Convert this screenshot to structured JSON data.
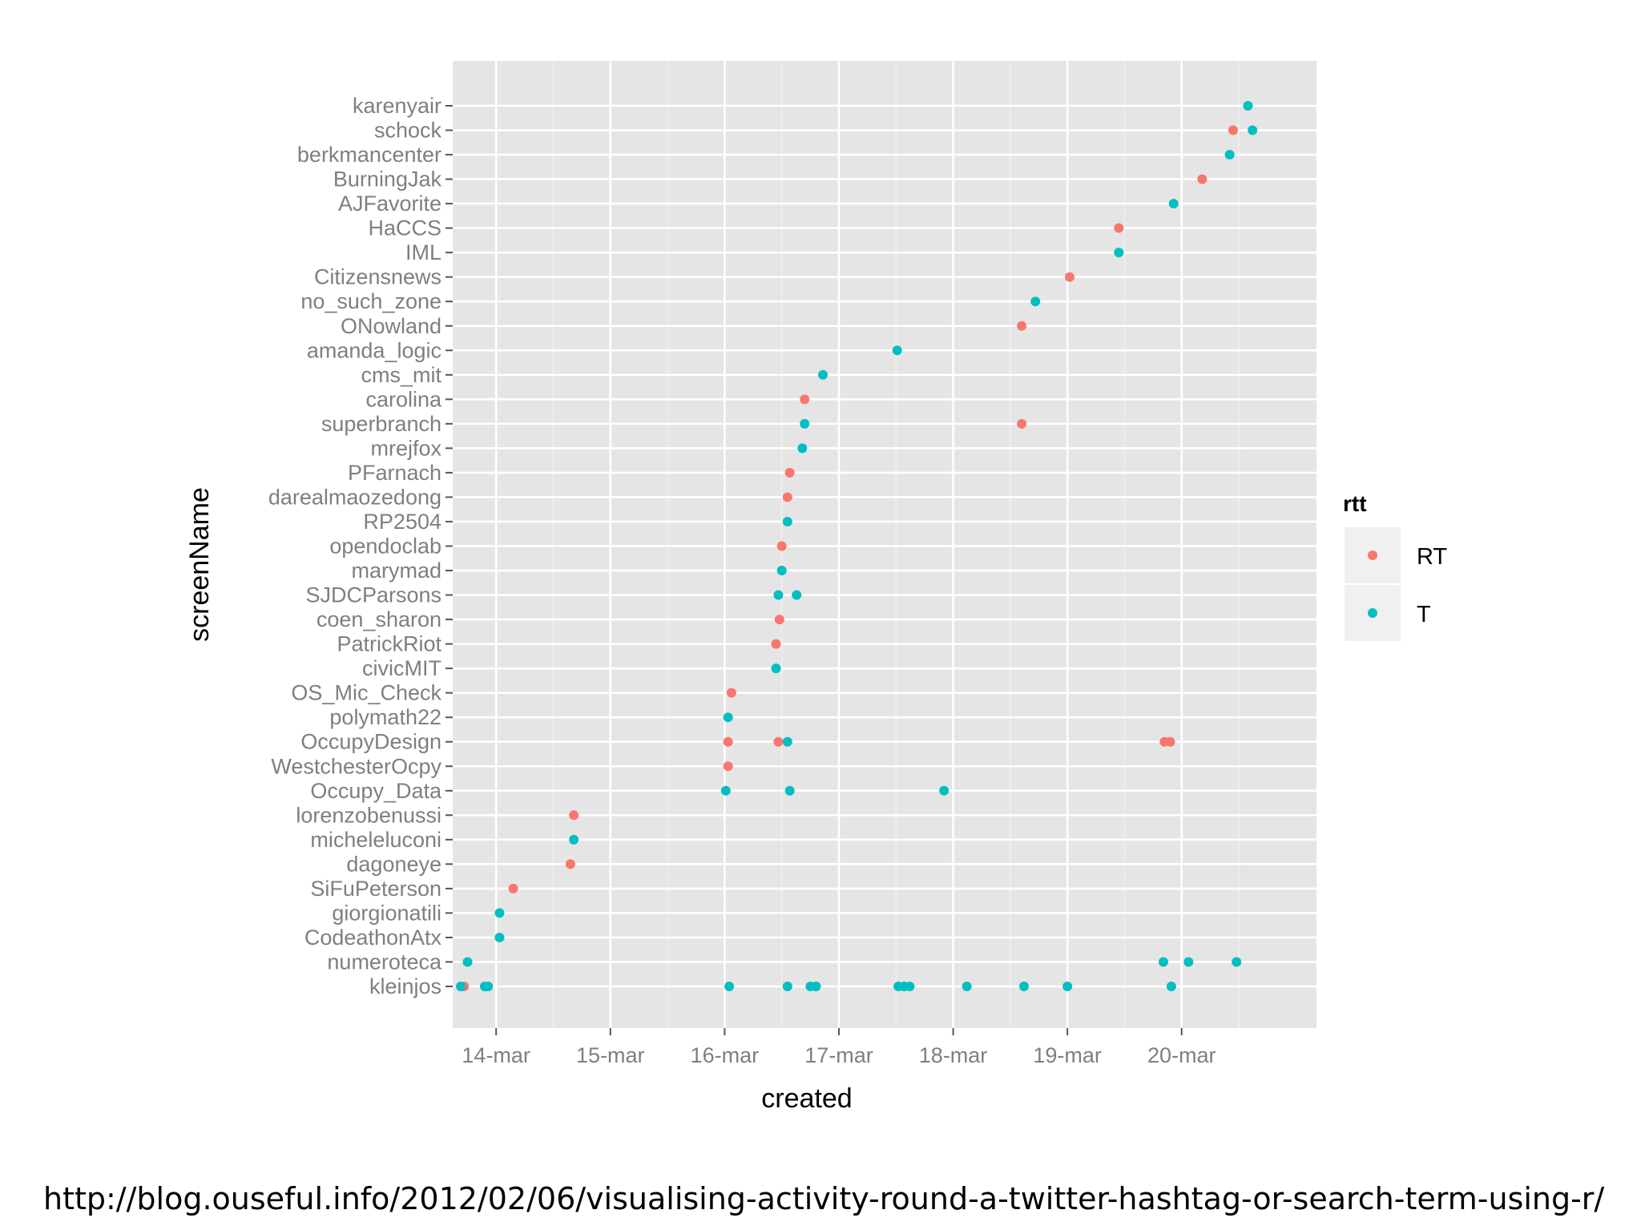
{
  "source_url": "http://blog.ouseful.info/2012/02/06/visualising-activity-round-a-twitter-hashtag-or-search-term-using-r/",
  "chart_data": {
    "type": "scatter",
    "title": "",
    "xlabel": "created",
    "ylabel": "screenName",
    "x_tick_labels": [
      "14-mar",
      "15-mar",
      "16-mar",
      "17-mar",
      "18-mar",
      "19-mar",
      "20-mar"
    ],
    "x_ticks": [
      14,
      15,
      16,
      17,
      18,
      19,
      20
    ],
    "xlim": [
      13.62,
      21.18
    ],
    "grid": true,
    "legend": {
      "title": "rtt",
      "position": "right",
      "entries": [
        "RT",
        "T"
      ]
    },
    "colors": {
      "RT": "#F8766D",
      "T": "#00BFC4"
    },
    "categories": [
      "kleinjos",
      "numeroteca",
      "CodeathonAtx",
      "giorgionatili",
      "SiFuPeterson",
      "dagoneye",
      "micheleluconi",
      "lorenzobenussi",
      "Occupy_Data",
      "WestchesterOcpy",
      "OccupyDesign",
      "polymath22",
      "OS_Mic_Check",
      "civicMIT",
      "PatrickRiot",
      "coen_sharon",
      "SJDCParsons",
      "marymad",
      "opendoclab",
      "RP2504",
      "darealmaozedong",
      "PFarnach",
      "mrejfox",
      "superbranch",
      "carolina",
      "cms_mit",
      "amanda_logic",
      "ONowland",
      "no_such_zone",
      "Citizensnews",
      "IML",
      "HaCCS",
      "AJFavorite",
      "BurningJak",
      "berkmancenter",
      "schock",
      "karenyair"
    ],
    "series": [
      {
        "name": "RT",
        "points": [
          {
            "x": 13.72,
            "y": "kleinjos"
          },
          {
            "x": 14.15,
            "y": "SiFuPeterson"
          },
          {
            "x": 14.65,
            "y": "dagoneye"
          },
          {
            "x": 14.68,
            "y": "lorenzobenussi"
          },
          {
            "x": 16.03,
            "y": "WestchesterOcpy"
          },
          {
            "x": 16.03,
            "y": "OccupyDesign"
          },
          {
            "x": 16.47,
            "y": "OccupyDesign"
          },
          {
            "x": 19.85,
            "y": "OccupyDesign"
          },
          {
            "x": 19.9,
            "y": "OccupyDesign"
          },
          {
            "x": 16.06,
            "y": "OS_Mic_Check"
          },
          {
            "x": 16.45,
            "y": "PatrickRiot"
          },
          {
            "x": 16.48,
            "y": "coen_sharon"
          },
          {
            "x": 16.5,
            "y": "opendoclab"
          },
          {
            "x": 16.55,
            "y": "darealmaozedong"
          },
          {
            "x": 16.57,
            "y": "PFarnach"
          },
          {
            "x": 18.6,
            "y": "superbranch"
          },
          {
            "x": 16.7,
            "y": "carolina"
          },
          {
            "x": 18.6,
            "y": "ONowland"
          },
          {
            "x": 19.02,
            "y": "Citizensnews"
          },
          {
            "x": 19.45,
            "y": "HaCCS"
          },
          {
            "x": 20.18,
            "y": "BurningJak"
          },
          {
            "x": 20.45,
            "y": "schock"
          }
        ]
      },
      {
        "name": "T",
        "points": [
          {
            "x": 13.69,
            "y": "kleinjos"
          },
          {
            "x": 13.9,
            "y": "kleinjos"
          },
          {
            "x": 13.93,
            "y": "kleinjos"
          },
          {
            "x": 16.04,
            "y": "kleinjos"
          },
          {
            "x": 16.55,
            "y": "kleinjos"
          },
          {
            "x": 16.75,
            "y": "kleinjos"
          },
          {
            "x": 16.8,
            "y": "kleinjos"
          },
          {
            "x": 17.52,
            "y": "kleinjos"
          },
          {
            "x": 17.57,
            "y": "kleinjos"
          },
          {
            "x": 17.62,
            "y": "kleinjos"
          },
          {
            "x": 18.12,
            "y": "kleinjos"
          },
          {
            "x": 18.62,
            "y": "kleinjos"
          },
          {
            "x": 19.0,
            "y": "kleinjos"
          },
          {
            "x": 19.91,
            "y": "kleinjos"
          },
          {
            "x": 13.75,
            "y": "numeroteca"
          },
          {
            "x": 19.84,
            "y": "numeroteca"
          },
          {
            "x": 20.06,
            "y": "numeroteca"
          },
          {
            "x": 20.48,
            "y": "numeroteca"
          },
          {
            "x": 14.03,
            "y": "CodeathonAtx"
          },
          {
            "x": 14.03,
            "y": "giorgionatili"
          },
          {
            "x": 14.68,
            "y": "micheleluconi"
          },
          {
            "x": 16.01,
            "y": "Occupy_Data"
          },
          {
            "x": 16.57,
            "y": "Occupy_Data"
          },
          {
            "x": 17.92,
            "y": "Occupy_Data"
          },
          {
            "x": 16.55,
            "y": "OccupyDesign"
          },
          {
            "x": 16.03,
            "y": "polymath22"
          },
          {
            "x": 16.45,
            "y": "civicMIT"
          },
          {
            "x": 16.47,
            "y": "SJDCParsons"
          },
          {
            "x": 16.63,
            "y": "SJDCParsons"
          },
          {
            "x": 16.5,
            "y": "marymad"
          },
          {
            "x": 16.55,
            "y": "RP2504"
          },
          {
            "x": 16.68,
            "y": "mrejfox"
          },
          {
            "x": 16.7,
            "y": "superbranch"
          },
          {
            "x": 16.86,
            "y": "cms_mit"
          },
          {
            "x": 17.51,
            "y": "amanda_logic"
          },
          {
            "x": 18.72,
            "y": "no_such_zone"
          },
          {
            "x": 19.45,
            "y": "IML"
          },
          {
            "x": 19.93,
            "y": "AJFavorite"
          },
          {
            "x": 20.42,
            "y": "berkmancenter"
          },
          {
            "x": 20.62,
            "y": "schock"
          },
          {
            "x": 20.58,
            "y": "karenyair"
          }
        ]
      }
    ]
  }
}
